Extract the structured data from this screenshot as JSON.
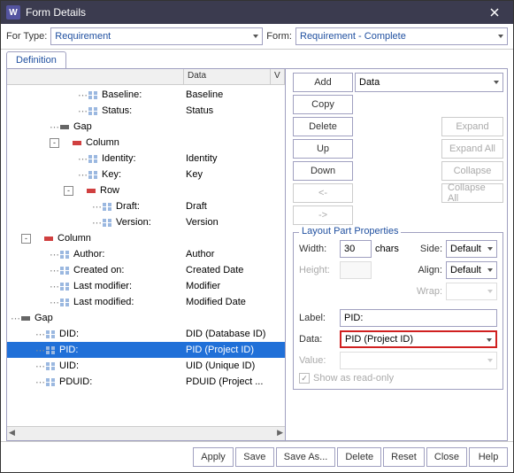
{
  "title": "Form Details",
  "top": {
    "forTypeLabel": "For Type:",
    "forType": "Requirement",
    "formLabel": "Form:",
    "form": "Requirement - Complete"
  },
  "tab": "Definition",
  "cols": {
    "data": "Data",
    "v": "V"
  },
  "tree": [
    {
      "indent": 80,
      "toggle": null,
      "icon": "grid",
      "label": "Baseline:",
      "data": "Baseline"
    },
    {
      "indent": 80,
      "toggle": null,
      "icon": "grid",
      "label": "Status:",
      "data": "Status"
    },
    {
      "indent": 48,
      "toggle": null,
      "icon": "bar",
      "label": "Gap",
      "data": ""
    },
    {
      "indent": 48,
      "toggle": "-",
      "icon": "redbar",
      "label": "Column",
      "data": ""
    },
    {
      "indent": 80,
      "toggle": null,
      "icon": "grid",
      "label": "Identity:",
      "data": "Identity"
    },
    {
      "indent": 80,
      "toggle": null,
      "icon": "grid",
      "label": "Key:",
      "data": "Key"
    },
    {
      "indent": 64,
      "toggle": "-",
      "icon": "redbar",
      "label": "Row",
      "data": ""
    },
    {
      "indent": 96,
      "toggle": null,
      "icon": "grid",
      "label": "Draft:",
      "data": "Draft"
    },
    {
      "indent": 96,
      "toggle": null,
      "icon": "grid",
      "label": "Version:",
      "data": "Version"
    },
    {
      "indent": 16,
      "toggle": "-",
      "icon": "redbar",
      "label": "Column",
      "data": ""
    },
    {
      "indent": 48,
      "toggle": null,
      "icon": "grid",
      "label": "Author:",
      "data": "Author"
    },
    {
      "indent": 48,
      "toggle": null,
      "icon": "grid",
      "label": "Created on:",
      "data": "Created Date"
    },
    {
      "indent": 48,
      "toggle": null,
      "icon": "grid",
      "label": "Last modifier:",
      "data": "Modifier"
    },
    {
      "indent": 48,
      "toggle": null,
      "icon": "grid",
      "label": "Last modified:",
      "data": "Modified Date"
    },
    {
      "indent": 4,
      "toggle": null,
      "icon": "bar",
      "label": "Gap",
      "data": ""
    },
    {
      "indent": 32,
      "toggle": null,
      "icon": "grid",
      "label": "DID:",
      "data": "DID (Database ID)"
    },
    {
      "indent": 32,
      "toggle": null,
      "icon": "grid",
      "label": "PID:",
      "data": "PID (Project ID)",
      "sel": true
    },
    {
      "indent": 32,
      "toggle": null,
      "icon": "grid",
      "label": "UID:",
      "data": "UID (Unique ID)"
    },
    {
      "indent": 32,
      "toggle": null,
      "icon": "grid",
      "label": "PDUID:",
      "data": "PDUID (Project ..."
    }
  ],
  "buttons": {
    "add": "Add",
    "addType": "Data",
    "copy": "Copy",
    "delete": "Delete",
    "up": "Up",
    "down": "Down",
    "left": "<-",
    "right": "->",
    "expand": "Expand",
    "expandAll": "Expand All",
    "collapse": "Collapse",
    "collapseAll": "Collapse All"
  },
  "props": {
    "legend": "Layout Part Properties",
    "widthLabel": "Width:",
    "width": "30",
    "chars": "chars",
    "heightLabel": "Height:",
    "height": "",
    "sideLabel": "Side:",
    "side": "Default",
    "alignLabel": "Align:",
    "align": "Default",
    "wrapLabel": "Wrap:",
    "wrap": "",
    "labelLabel": "Label:",
    "label": "PID:",
    "dataLabel": "Data:",
    "data": "PID (Project ID)",
    "valueLabel": "Value:",
    "value": "",
    "readonly": "Show as read-only"
  },
  "bottom": {
    "apply": "Apply",
    "save": "Save",
    "saveAs": "Save As...",
    "delete": "Delete",
    "reset": "Reset",
    "close": "Close",
    "help": "Help"
  }
}
